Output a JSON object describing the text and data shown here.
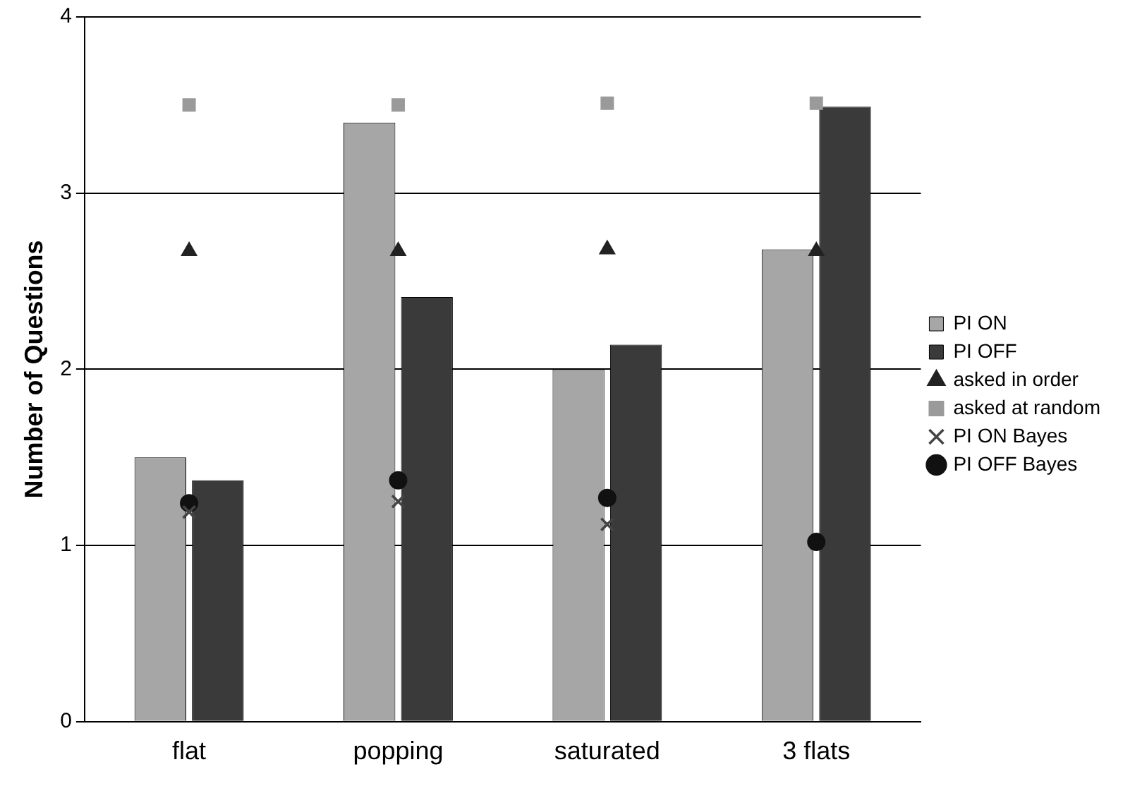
{
  "chart_data": {
    "type": "bar",
    "ylabel": "Number of Questions",
    "categories": [
      "flat",
      "popping",
      "saturated",
      "3 flats"
    ],
    "series": [
      {
        "name": "PI ON",
        "type": "bar",
        "color": "#a6a6a6",
        "values": [
          1.5,
          3.4,
          2.0,
          2.68
        ]
      },
      {
        "name": "PI OFF",
        "type": "bar",
        "color": "#3a3a3a",
        "values": [
          1.37,
          2.41,
          2.14,
          3.49
        ]
      },
      {
        "name": "asked in order",
        "type": "scatter",
        "marker": "triangle",
        "color": "#222222",
        "x": [
          "flat",
          "popping",
          "saturated",
          "3 flats"
        ],
        "values": [
          2.67,
          2.67,
          2.68,
          2.67
        ]
      },
      {
        "name": "asked at random",
        "type": "scatter",
        "marker": "square",
        "color": "#9a9a9a",
        "x": [
          "flat",
          "popping",
          "saturated",
          "3 flats"
        ],
        "values": [
          3.5,
          3.5,
          3.51,
          3.51
        ]
      },
      {
        "name": "PI ON Bayes",
        "type": "scatter",
        "marker": "cross",
        "color": "#444444",
        "x": [
          "flat",
          "popping",
          "saturated",
          "3 flats"
        ],
        "values": [
          1.19,
          1.25,
          1.12,
          null
        ]
      },
      {
        "name": "PI OFF Bayes",
        "type": "scatter",
        "marker": "circle",
        "color": "#111111",
        "x": [
          "flat",
          "popping",
          "saturated",
          "3 flats"
        ],
        "values": [
          1.24,
          1.37,
          1.27,
          1.02
        ]
      }
    ],
    "ylim": [
      0,
      4
    ],
    "yticks": [
      0,
      1,
      2,
      3,
      4
    ],
    "grid": "y",
    "legend": "right"
  }
}
